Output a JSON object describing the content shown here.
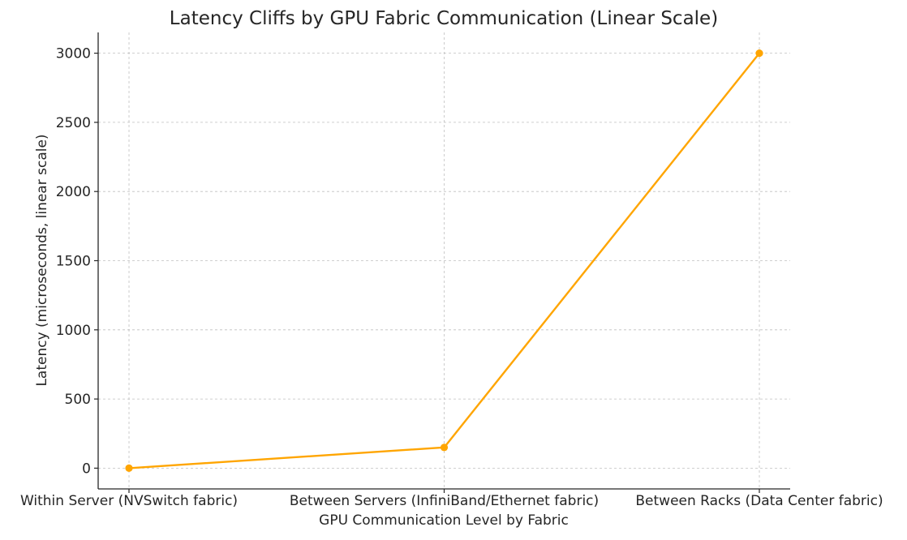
{
  "chart_data": {
    "type": "line",
    "title": "Latency Cliffs by GPU Fabric Communication (Linear Scale)",
    "xlabel": "GPU Communication Level by Fabric",
    "ylabel": "Latency (microseconds, linear scale)",
    "categories": [
      "Within Server (NVSwitch fabric)",
      "Between Servers (InfiniBand/Ethernet fabric)",
      "Between Racks (Data Center fabric)"
    ],
    "series": [
      {
        "values": [
          0,
          150,
          3000
        ],
        "color": "#FFA500"
      }
    ],
    "ylim": [
      -150,
      3150
    ],
    "yticks": [
      0,
      500,
      1000,
      1500,
      2000,
      2500,
      3000
    ],
    "grid": true,
    "legend": "none",
    "marker": "circle"
  }
}
